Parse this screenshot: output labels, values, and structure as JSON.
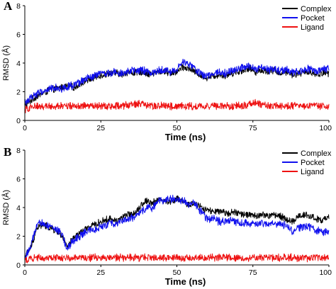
{
  "chart_data": [
    {
      "panel": "A",
      "type": "line",
      "xlabel": "Time (ns)",
      "ylabel": "RMSD (Å)",
      "xlim": [
        0,
        100
      ],
      "ylim": [
        0,
        8
      ],
      "xticks": [
        "0",
        "25",
        "50",
        "75",
        "100"
      ],
      "yticks": [
        "0",
        "2",
        "4",
        "6",
        "8"
      ],
      "legend_position": "top-right",
      "x": [
        0,
        2,
        4,
        6,
        8,
        10,
        12,
        14,
        16,
        18,
        20,
        22,
        24,
        26,
        28,
        30,
        32,
        34,
        36,
        38,
        40,
        42,
        44,
        46,
        48,
        50,
        52,
        54,
        56,
        58,
        60,
        62,
        64,
        66,
        68,
        70,
        72,
        74,
        76,
        78,
        80,
        82,
        84,
        86,
        88,
        90,
        92,
        94,
        96,
        98,
        100
      ],
      "series": [
        {
          "name": "Complex",
          "color": "#000000",
          "values": [
            1.0,
            1.4,
            1.7,
            1.9,
            2.1,
            2.2,
            2.3,
            2.4,
            2.3,
            2.5,
            2.8,
            2.9,
            3.1,
            3.2,
            3.3,
            3.3,
            3.2,
            3.4,
            3.3,
            3.4,
            3.3,
            3.2,
            3.4,
            3.4,
            3.3,
            3.4,
            3.7,
            3.6,
            3.4,
            3.1,
            3.0,
            3.1,
            3.2,
            3.1,
            3.3,
            3.4,
            3.5,
            3.6,
            3.4,
            3.5,
            3.4,
            3.5,
            3.3,
            3.4,
            3.2,
            3.3,
            3.3,
            3.4,
            3.2,
            3.3,
            3.3
          ]
        },
        {
          "name": "Pocket",
          "color": "#1010ee",
          "values": [
            1.2,
            1.6,
            1.9,
            2.0,
            2.2,
            2.3,
            2.2,
            2.4,
            2.4,
            2.6,
            2.9,
            3.0,
            3.2,
            3.3,
            3.3,
            3.4,
            3.3,
            3.5,
            3.4,
            3.5,
            3.4,
            3.3,
            3.5,
            3.5,
            3.4,
            3.5,
            4.1,
            3.9,
            3.6,
            3.2,
            3.1,
            3.3,
            3.4,
            3.3,
            3.5,
            3.6,
            3.7,
            3.8,
            3.5,
            3.7,
            3.5,
            3.6,
            3.4,
            3.5,
            3.3,
            3.4,
            3.5,
            3.6,
            3.4,
            3.5,
            3.6
          ]
        },
        {
          "name": "Ligand",
          "color": "#ee1111",
          "values": [
            0.7,
            0.9,
            1.0,
            1.0,
            1.0,
            1.0,
            1.0,
            1.0,
            1.0,
            1.0,
            1.0,
            1.0,
            1.0,
            1.0,
            1.0,
            1.0,
            1.0,
            1.1,
            1.1,
            1.2,
            1.0,
            1.0,
            1.0,
            1.0,
            1.0,
            1.0,
            1.0,
            1.0,
            1.0,
            1.0,
            1.0,
            1.0,
            1.0,
            1.0,
            1.0,
            1.0,
            1.0,
            1.1,
            1.3,
            1.1,
            1.0,
            1.0,
            1.0,
            1.0,
            1.0,
            1.0,
            1.0,
            1.0,
            1.0,
            1.0,
            1.0
          ]
        }
      ]
    },
    {
      "panel": "B",
      "type": "line",
      "xlabel": "Time (ns)",
      "ylabel": "RMSD (Å)",
      "xlim": [
        0,
        100
      ],
      "ylim": [
        0,
        8
      ],
      "xticks": [
        "0",
        "25",
        "50",
        "75",
        "100"
      ],
      "yticks": [
        "0",
        "2",
        "4",
        "6",
        "8"
      ],
      "legend_position": "top-right",
      "x": [
        0,
        2,
        4,
        6,
        8,
        10,
        12,
        14,
        16,
        18,
        20,
        22,
        24,
        26,
        28,
        30,
        32,
        34,
        36,
        38,
        40,
        42,
        44,
        46,
        48,
        50,
        52,
        54,
        56,
        58,
        60,
        62,
        64,
        66,
        68,
        70,
        72,
        74,
        76,
        78,
        80,
        82,
        84,
        86,
        88,
        90,
        92,
        94,
        96,
        98,
        100
      ],
      "series": [
        {
          "name": "Complex",
          "color": "#000000",
          "values": [
            0.6,
            1.2,
            2.6,
            2.8,
            2.6,
            2.4,
            2.1,
            1.2,
            1.9,
            2.2,
            2.5,
            2.7,
            2.9,
            3.1,
            3.2,
            3.1,
            3.3,
            3.5,
            3.6,
            4.1,
            4.5,
            4.3,
            4.6,
            4.4,
            4.4,
            4.6,
            4.4,
            4.2,
            4.3,
            4.0,
            3.8,
            3.7,
            3.7,
            3.6,
            3.7,
            3.6,
            3.5,
            3.5,
            3.4,
            3.5,
            3.4,
            3.5,
            3.4,
            3.2,
            3.0,
            3.4,
            3.5,
            3.4,
            3.2,
            3.1,
            3.3
          ]
        },
        {
          "name": "Pocket",
          "color": "#1010ee",
          "values": [
            0.5,
            1.3,
            2.8,
            2.9,
            2.7,
            2.5,
            2.2,
            1.1,
            1.7,
            2.0,
            2.3,
            2.4,
            2.6,
            2.7,
            2.9,
            2.9,
            3.1,
            3.2,
            3.3,
            3.6,
            4.0,
            4.0,
            4.4,
            4.6,
            4.6,
            4.6,
            4.5,
            4.2,
            4.3,
            3.7,
            3.2,
            3.3,
            3.0,
            3.0,
            3.1,
            3.0,
            2.9,
            2.9,
            2.8,
            2.9,
            2.8,
            2.9,
            2.8,
            2.8,
            2.3,
            2.6,
            2.7,
            2.6,
            2.4,
            2.3,
            2.2
          ]
        },
        {
          "name": "Ligand",
          "color": "#ee1111",
          "values": [
            0.3,
            0.5,
            0.5,
            0.5,
            0.5,
            0.5,
            0.5,
            0.5,
            0.5,
            0.5,
            0.5,
            0.5,
            0.5,
            0.5,
            0.5,
            0.5,
            0.5,
            0.5,
            0.5,
            0.5,
            0.5,
            0.5,
            0.5,
            0.5,
            0.5,
            0.5,
            0.5,
            0.5,
            0.5,
            0.5,
            0.5,
            0.5,
            0.5,
            0.5,
            0.5,
            0.5,
            0.5,
            0.5,
            0.5,
            0.5,
            0.5,
            0.5,
            0.5,
            0.5,
            0.5,
            0.5,
            0.5,
            0.5,
            0.5,
            0.5,
            0.5
          ]
        }
      ]
    }
  ]
}
